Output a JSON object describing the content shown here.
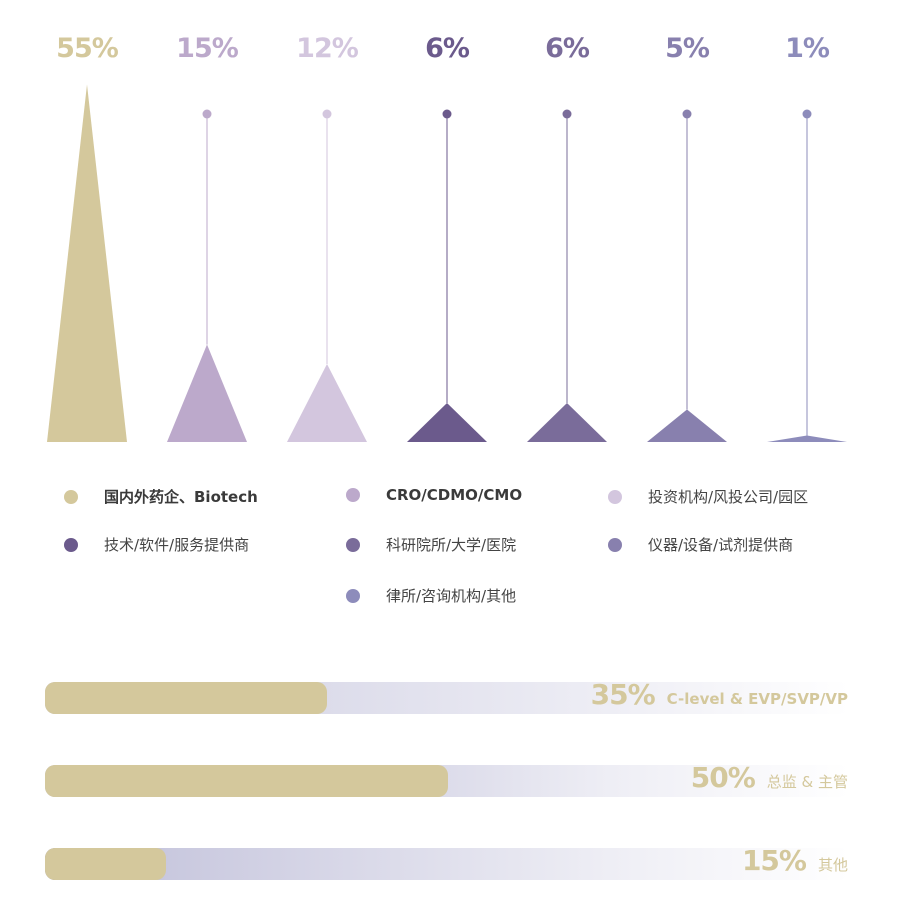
{
  "chart_data": [
    {
      "type": "bar",
      "categories": [
        "国内外药企、Biotech",
        "CRO/CDMO/CMO",
        "投资机构/风投公司/园区",
        "技术/软件/服务提供商",
        "科研院所/大学/医院",
        "仪器/设备/试剂提供商",
        "律所/咨询机构/其他"
      ],
      "values": [
        55,
        15,
        12,
        6,
        6,
        5,
        1
      ],
      "value_labels": [
        "55%",
        "15%",
        "12%",
        "6%",
        "6%",
        "5%",
        "1%"
      ],
      "colors": [
        "#d4c89c",
        "#bca9cb",
        "#d3c6de",
        "#6b5a8c",
        "#7a6c9a",
        "#8880ae",
        "#8d8cbb"
      ],
      "legend": "bottom",
      "grid": false
    },
    {
      "type": "bar",
      "orientation": "horizontal",
      "categories": [
        "C-level & EVP/SVP/VP",
        "总监 & 主管",
        "其他"
      ],
      "values": [
        35,
        50,
        15
      ],
      "value_labels": [
        "35%",
        "50%",
        "15%"
      ],
      "xlim": [
        0,
        100
      ],
      "colors": {
        "fill": "#d4c89c",
        "track": "#8d8cbb"
      }
    }
  ]
}
